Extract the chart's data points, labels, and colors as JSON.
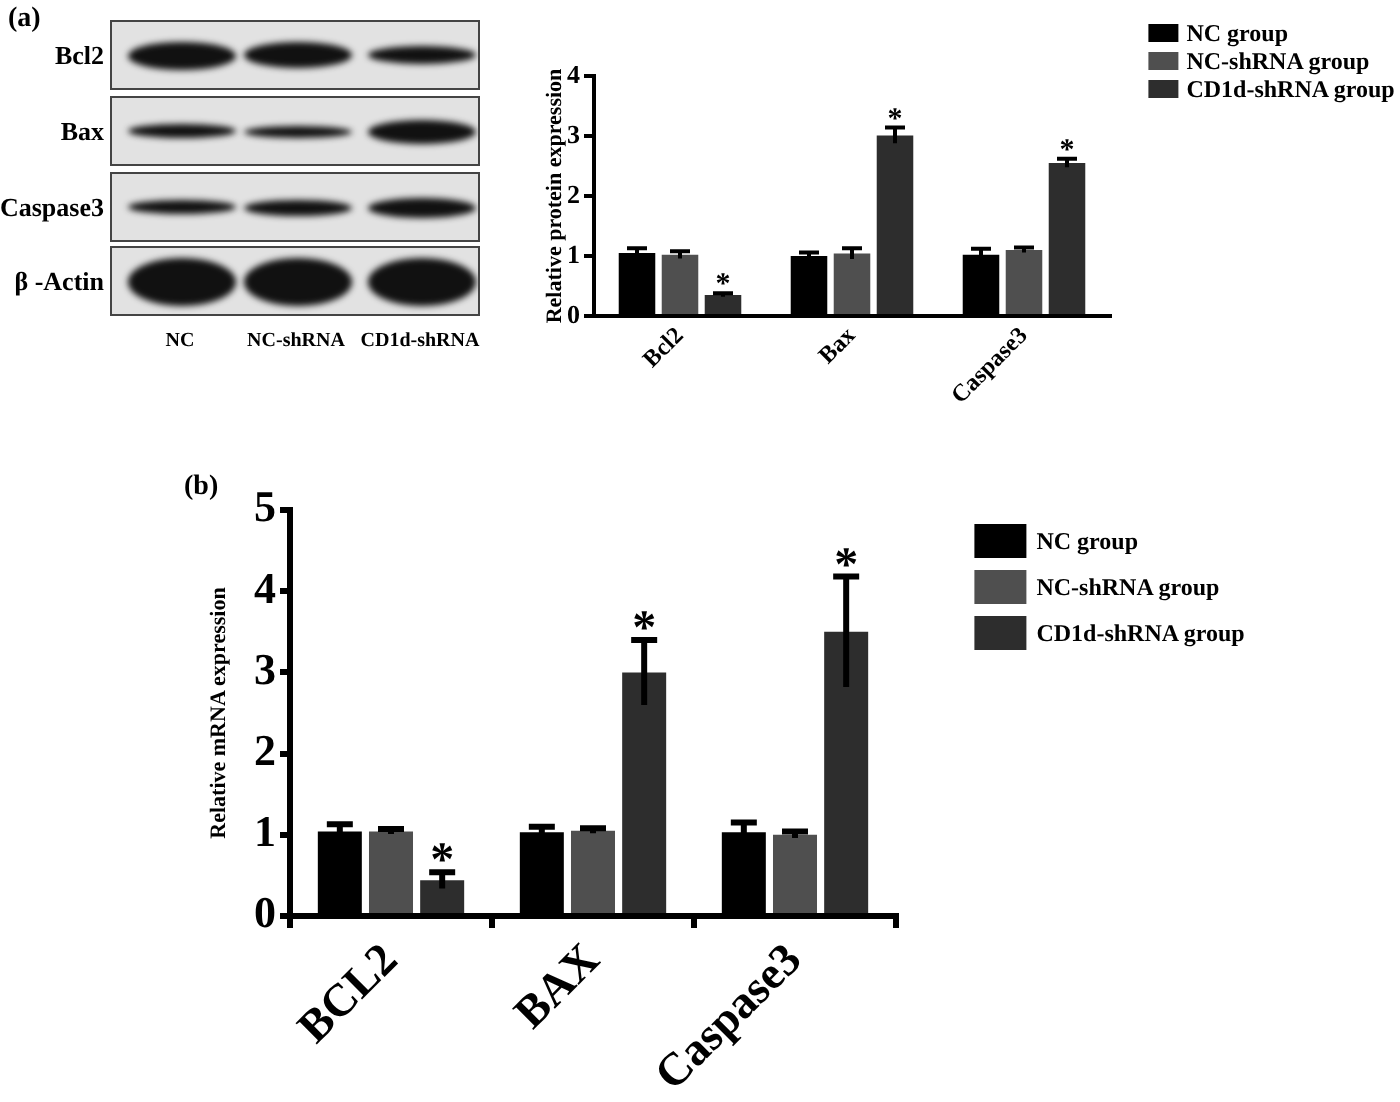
{
  "chart_data": [
    {
      "type": "other",
      "title": "(a)",
      "categories": [
        "NC",
        "NC-shRNA",
        "CD1d-shRNA"
      ],
      "y_categories": [
        "Bcl2",
        "Bax",
        "Caspase3",
        "β -Actin"
      ]
    },
    {
      "type": "bar",
      "ylabel": "Relative protein expression",
      "categories": [
        "Bcl2",
        "Bax",
        "Caspase3"
      ],
      "series": [
        {
          "name": "NC group",
          "color": "#000000",
          "values": [
            1.05,
            1.0,
            1.02
          ],
          "errors": [
            0.08,
            0.06,
            0.1
          ]
        },
        {
          "name": "NC-shRNA group",
          "color": "#4f4f4f",
          "values": [
            1.02,
            1.04,
            1.1
          ],
          "errors": [
            0.06,
            0.09,
            0.04
          ]
        },
        {
          "name": "CD1d-shRNA group",
          "color": "#2d2d2d",
          "values": [
            0.35,
            3.01,
            2.55
          ],
          "errors": [
            0.03,
            0.13,
            0.07
          ],
          "value_labels": [
            "*",
            "*",
            "*"
          ]
        }
      ],
      "ylim": [
        0,
        4
      ],
      "yticks": [
        0,
        1,
        2,
        3,
        4
      ],
      "legend": "top right"
    },
    {
      "type": "bar",
      "title": "(b)",
      "ylabel": "Relative mRNA expression",
      "categories": [
        "BCL2",
        "BAX",
        "Caspase3"
      ],
      "series": [
        {
          "name": "NC group",
          "color": "#000000",
          "values": [
            1.04,
            1.03,
            1.03
          ],
          "errors": [
            0.09,
            0.07,
            0.12
          ]
        },
        {
          "name": "NC-shRNA group",
          "color": "#4f4f4f",
          "values": [
            1.04,
            1.05,
            1.0
          ],
          "errors": [
            0.03,
            0.03,
            0.04
          ]
        },
        {
          "name": "CD1d-shRNA group",
          "color": "#2d2d2d",
          "values": [
            0.44,
            3.0,
            3.5
          ],
          "errors": [
            0.1,
            0.4,
            0.68
          ],
          "value_labels": [
            "*",
            "*",
            "*"
          ]
        }
      ],
      "ylim": [
        0,
        5
      ],
      "yticks": [
        0,
        1,
        2,
        3,
        4,
        5
      ],
      "legend": "top right"
    }
  ]
}
